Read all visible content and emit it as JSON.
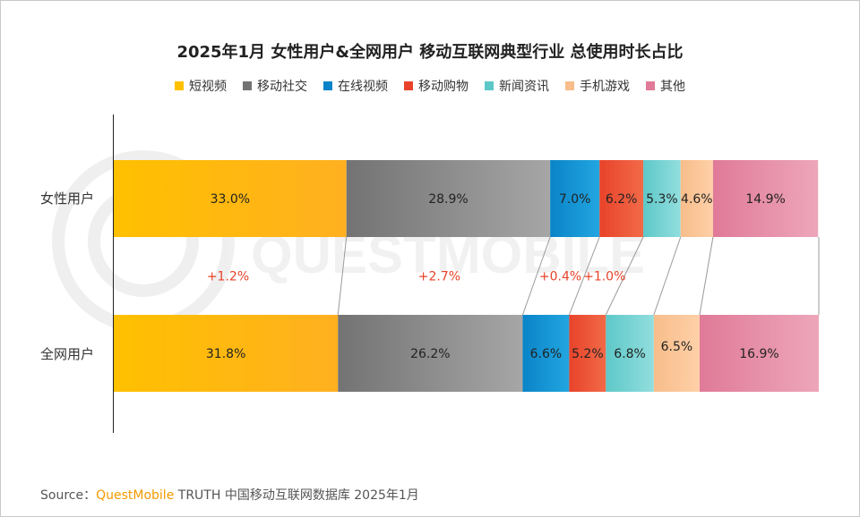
{
  "chart_data": {
    "type": "bar",
    "title": "2025年1月 女性用户&全网用户 移动互联网典型行业 总使用时长占比",
    "legend_position": "top",
    "series": [
      {
        "name": "短视频",
        "color": "#ffc000",
        "color_light": "#ffb020"
      },
      {
        "name": "移动社交",
        "color": "#737373",
        "color_light": "#a6a6a6"
      },
      {
        "name": "在线视频",
        "color": "#0a84c8",
        "color_light": "#22a6e0"
      },
      {
        "name": "移动购物",
        "color": "#e8432a",
        "color_light": "#f26a48"
      },
      {
        "name": "新闻资讯",
        "color": "#5ec8c8",
        "color_light": "#92dede"
      },
      {
        "name": "手机游戏",
        "color": "#f7bd8a",
        "color_light": "#ffd0a8"
      },
      {
        "name": "其他",
        "color": "#e07a98",
        "color_light": "#eda6ba"
      }
    ],
    "categories": [
      "女性用户",
      "全网用户"
    ],
    "values": [
      [
        33.0,
        28.9,
        7.0,
        6.2,
        5.3,
        4.6,
        14.9
      ],
      [
        31.8,
        26.2,
        6.6,
        5.2,
        6.8,
        6.5,
        16.9
      ]
    ],
    "value_labels": [
      [
        "33.0%",
        "28.9%",
        "7.0%",
        "6.2%",
        "5.3%",
        "4.6%",
        "14.9%"
      ],
      [
        "31.8%",
        "26.2%",
        "6.6%",
        "5.2%",
        "6.8%",
        "6.5%",
        "16.9%"
      ]
    ],
    "differences": [
      {
        "label": "+1.2%",
        "series_index": 0
      },
      {
        "label": "+2.7%",
        "series_index": 1
      },
      {
        "label": "+0.4%",
        "series_index": 2
      },
      {
        "label": "+1.0%",
        "series_index": 3
      }
    ],
    "difference_color": "#e8432a"
  },
  "watermark": "QUESTMOBILE",
  "source": {
    "prefix": "Source：",
    "brand": "QuestMobile",
    "text": " TRUTH 中国移动互联网数据库 2025年1月"
  }
}
